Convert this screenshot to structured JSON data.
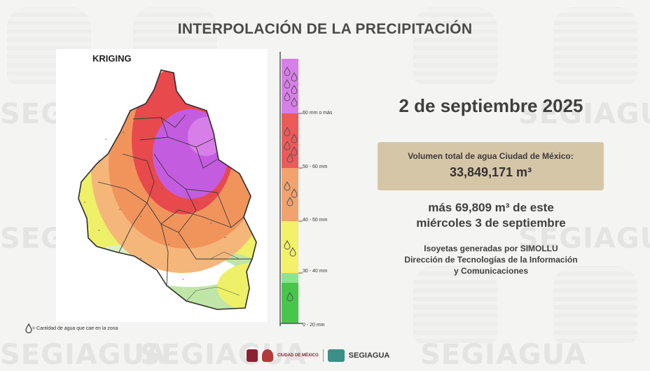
{
  "watermark": {
    "text": "SEGIAGUA"
  },
  "header": {
    "title": "INTERPOLACIÓN DE LA PRECIPITACIÓN"
  },
  "map": {
    "method_label": "KRIGING",
    "note": "= Cantidad de agua que cae en la zona",
    "note_icon": "water-drop-icon"
  },
  "legend": {
    "bands": [
      {
        "label": "60 mm o más",
        "color": "#d77ee8",
        "drops": 6
      },
      {
        "label": "50 - 60 mm",
        "color": "#ec5a5a",
        "drops": 5
      },
      {
        "label": "40 - 50 mm",
        "color": "#f2a26e",
        "drops": 3
      },
      {
        "label": "30 - 40 mm",
        "color": "#f3f06a",
        "drops": 2
      },
      {
        "label": "0 - 20 mm",
        "color": "#47c64b",
        "drops": 1
      }
    ],
    "icon": "water-drop-icon"
  },
  "summary": {
    "date": "2 de septiembre 2025",
    "volume_label": "Volumen total de agua Ciudad de México:",
    "volume_value": "33,849,171 m³",
    "extra_line1": "más 69,809 m³ de este",
    "extra_line2": "miércoles 3 de septiembre",
    "credit_line1": "Isoyetas generadas por SIMOLLU",
    "credit_line2": "Dirección de Tecnologías de la Información",
    "credit_line3": "y Comunicaciones"
  },
  "footer": {
    "cdmx_logo_text": "CIUDAD DE MÉXICO",
    "brand": "SEGIAGUA"
  },
  "colors": {
    "purple": "#c45ce0",
    "red": "#e8494c",
    "orange": "#f0945c",
    "yellow": "#eef067",
    "lightgreen": "#bfe6a6",
    "box": "#d6c6a8"
  }
}
